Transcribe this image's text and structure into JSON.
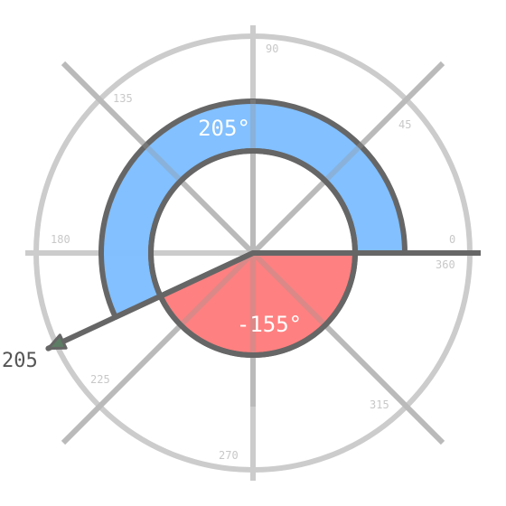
{
  "diagram": {
    "angle_labels": {
      "positive": "205°",
      "negative": "-155°"
    },
    "pointer_label": "205",
    "pointer_angle_deg": 205,
    "positive_sweep_deg": 205,
    "negative_sweep_deg": -155,
    "tick_labels": {
      "t0": "0",
      "t45": "45",
      "t90": "90",
      "t135": "135",
      "t180": "180",
      "t225": "225",
      "t270": "270",
      "t315": "315",
      "t360": "360"
    },
    "colors": {
      "positive_arc": "#80bfff",
      "negative_sector": "#ff8080",
      "outline": "#666666",
      "grid": "#cccccc"
    }
  }
}
